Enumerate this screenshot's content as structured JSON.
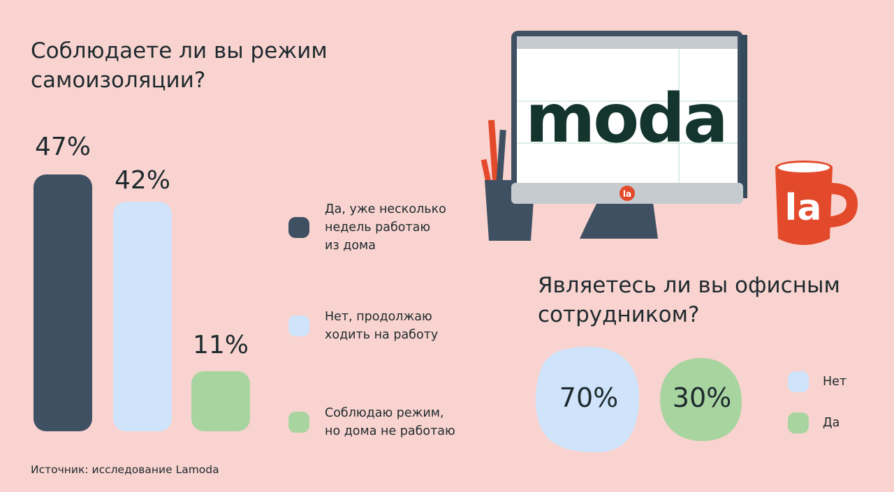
{
  "chart_data": [
    {
      "type": "bar",
      "title": "Соблюдаете ли вы режим самоизоляции?",
      "categories": [
        "Да, уже несколько недель работаю из дома",
        "Нет, продолжаю ходить на работу",
        "Соблюдаю режим, но дома не работаю"
      ],
      "values": [
        47,
        42,
        11
      ],
      "value_labels": [
        "47%",
        "42%",
        "11%"
      ],
      "colors": [
        "#3f5063",
        "#cfe4fb",
        "#a8d4a0"
      ],
      "ylim": [
        0,
        47
      ]
    },
    {
      "type": "pie",
      "title": "Являетесь ли вы офисным сотрудником?",
      "categories": [
        "Нет",
        "Да"
      ],
      "values": [
        70,
        30
      ],
      "value_labels": [
        "70%",
        "30%"
      ],
      "colors": [
        "#cfe4fb",
        "#a8d4a0"
      ]
    }
  ],
  "legend1": [
    {
      "line1": "Да, уже несколько",
      "line2": "недель работаю",
      "line3": "из дома"
    },
    {
      "line1": "Нет, продолжаю",
      "line2": "ходить на работу"
    },
    {
      "line1": "Соблюдаю режим,",
      "line2": "но дома не работаю"
    }
  ],
  "legend2": [
    "Нет",
    "Да"
  ],
  "illustration": {
    "screen_logo": "moda",
    "badge": "la",
    "mug_logo": "la"
  },
  "source": "Источник: исследование Lamoda"
}
